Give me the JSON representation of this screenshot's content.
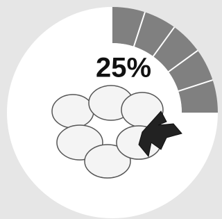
{
  "chart_data": {
    "type": "pie",
    "values": [
      25
    ],
    "value_labels": [
      "25%"
    ],
    "color": "#808080"
  }
}
